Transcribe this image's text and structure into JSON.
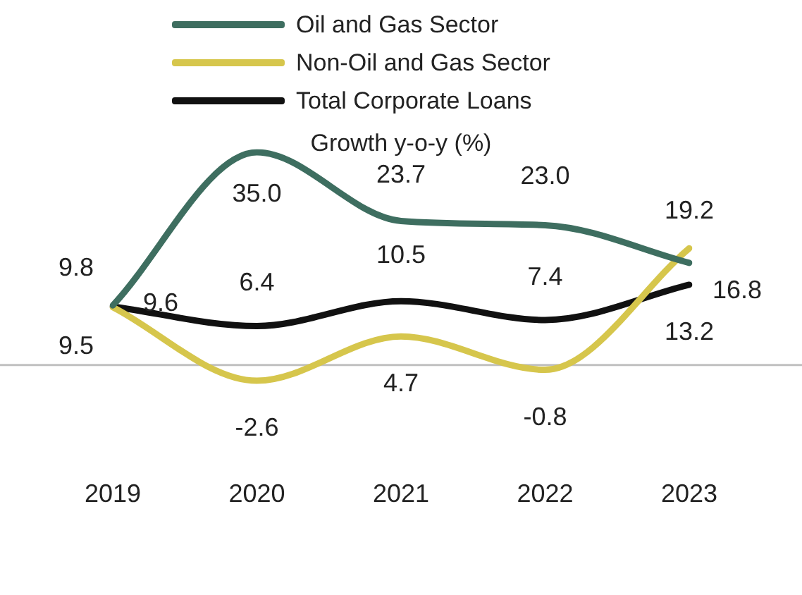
{
  "chart_data": {
    "type": "line",
    "subtitle": "Growth y-o-y (%)",
    "categories": [
      "2019",
      "2020",
      "2021",
      "2022",
      "2023"
    ],
    "series": [
      {
        "name": "Oil and Gas Sector",
        "color": "#3e6e60",
        "values": [
          9.8,
          35.0,
          23.7,
          23.0,
          16.8
        ],
        "value_labels": [
          "9.8",
          "35.0",
          "23.7",
          "23.0",
          "16.8"
        ]
      },
      {
        "name": "Non-Oil and Gas Sector",
        "color": "#d6c64c",
        "values": [
          9.5,
          -2.6,
          4.7,
          -0.8,
          19.2
        ],
        "value_labels": [
          "9.5",
          "-2.6",
          "4.7",
          "-0.8",
          "19.2"
        ]
      },
      {
        "name": "Total Corporate Loans",
        "color": "#111111",
        "values": [
          9.6,
          6.4,
          10.5,
          7.4,
          13.2
        ],
        "value_labels": [
          "9.6",
          "6.4",
          "10.5",
          "7.4",
          "13.2"
        ]
      }
    ],
    "ref_lines": [
      {
        "axis": "y",
        "value": 0,
        "color": "#c0c0c0"
      }
    ],
    "data_labels": true,
    "legend": "top",
    "grid": false,
    "marker": "none",
    "line_style": "solid"
  }
}
